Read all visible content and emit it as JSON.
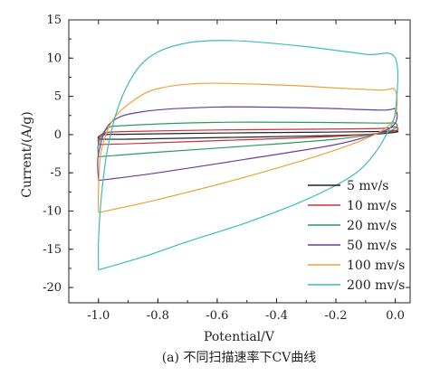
{
  "chart_data": {
    "type": "line",
    "xlabel": "Potential/V",
    "ylabel": "Current/(A/g)",
    "xlim": [
      -1.1,
      0.05
    ],
    "ylim": [
      -22,
      15
    ],
    "xticks": [
      -1.0,
      -0.8,
      -0.6,
      -0.4,
      -0.2,
      0.0
    ],
    "xtick_labels": [
      "-1.0",
      "-0.8",
      "-0.6",
      "-0.4",
      "-0.2",
      "0.0"
    ],
    "yticks": [
      15,
      10,
      5,
      0,
      -5,
      -10,
      -15,
      -20
    ],
    "ytick_labels": [
      "15",
      "10",
      "5",
      "0",
      "-5",
      "-10",
      "-15",
      "-20"
    ],
    "legend_position": "lower-right",
    "series": [
      {
        "name": "5 mv/s",
        "color": "#222222",
        "x": [
          -1.0,
          -1.0,
          -0.98,
          -0.9,
          -0.6,
          -0.3,
          -0.05,
          0.0,
          0.0,
          -0.1,
          -0.3,
          -0.6,
          -0.9,
          -1.0
        ],
        "y": [
          -0.6,
          -0.3,
          0.0,
          0.05,
          0.2,
          0.3,
          0.4,
          0.5,
          0.3,
          0.0,
          -0.2,
          -0.4,
          -0.6,
          -0.6
        ]
      },
      {
        "name": "10 mv/s",
        "color": "#c8323c",
        "x": [
          -1.0,
          -1.0,
          -0.98,
          -0.9,
          -0.6,
          -0.3,
          -0.05,
          0.0,
          0.0,
          -0.1,
          -0.3,
          -0.6,
          -0.9,
          -1.0
        ],
        "y": [
          -1.3,
          -0.6,
          0.2,
          0.4,
          0.6,
          0.7,
          0.8,
          1.0,
          0.5,
          0.0,
          -0.4,
          -0.8,
          -1.2,
          -1.3
        ]
      },
      {
        "name": "20 mv/s",
        "color": "#2e9a5a",
        "x": [
          -1.0,
          -1.0,
          -0.97,
          -0.9,
          -0.6,
          -0.3,
          -0.05,
          0.0,
          0.0,
          -0.05,
          -0.2,
          -0.5,
          -0.8,
          -1.0
        ],
        "y": [
          -2.9,
          -1.2,
          0.8,
          1.2,
          1.6,
          1.6,
          1.5,
          1.5,
          0.8,
          0.2,
          -0.6,
          -1.5,
          -2.3,
          -2.9
        ]
      },
      {
        "name": "50 mv/s",
        "color": "#6e3c9a",
        "x": [
          -1.0,
          -1.0,
          -0.96,
          -0.85,
          -0.6,
          -0.3,
          -0.05,
          0.0,
          0.0,
          -0.05,
          -0.2,
          -0.5,
          -0.8,
          -1.0
        ],
        "y": [
          -6.0,
          -2.5,
          1.5,
          3.0,
          3.6,
          3.5,
          3.2,
          3.3,
          1.5,
          0.3,
          -1.3,
          -3.2,
          -5.0,
          -6.0
        ]
      },
      {
        "name": "100 mv/s",
        "color": "#eba23a",
        "x": [
          -1.0,
          -1.0,
          -0.99,
          -0.95,
          -0.88,
          -0.8,
          -0.65,
          -0.4,
          -0.2,
          -0.05,
          0.0,
          0.0,
          -0.05,
          -0.2,
          -0.5,
          -0.8,
          -1.0
        ],
        "y": [
          -10.2,
          -7.0,
          -2.0,
          2.0,
          4.5,
          6.0,
          6.7,
          6.5,
          6.1,
          5.8,
          5.8,
          2.5,
          0.4,
          -2.0,
          -5.5,
          -8.5,
          -10.2
        ]
      },
      {
        "name": "200 mv/s",
        "color": "#3cbcbc",
        "x": [
          -1.0,
          -1.0,
          -0.99,
          -0.97,
          -0.93,
          -0.87,
          -0.8,
          -0.7,
          -0.6,
          -0.5,
          -0.3,
          -0.1,
          0.0,
          0.0,
          -0.03,
          -0.08,
          -0.15,
          -0.3,
          -0.5,
          -0.7,
          -0.85,
          -1.0
        ],
        "y": [
          -17.7,
          -14.0,
          -8.0,
          -2.0,
          4.0,
          8.5,
          10.8,
          12.0,
          12.3,
          12.2,
          11.5,
          10.5,
          10.0,
          3.0,
          0.0,
          -3.0,
          -5.5,
          -8.5,
          -11.5,
          -14.0,
          -16.0,
          -17.7
        ]
      }
    ]
  },
  "caption": "(a) 不同扫描速率下CV曲线"
}
